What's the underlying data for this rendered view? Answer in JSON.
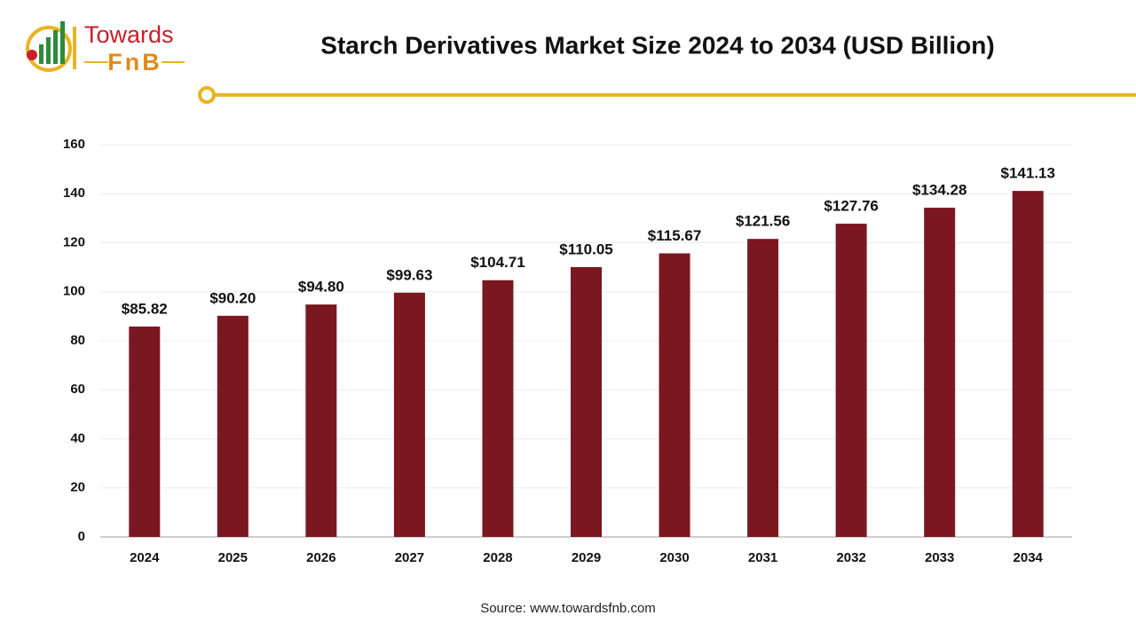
{
  "logo": {
    "line1": "Towards",
    "line2": "FnB"
  },
  "chart_data": {
    "type": "bar",
    "title": "Starch Derivatives Market Size 2024 to 2034 (USD Billion)",
    "categories": [
      "2024",
      "2025",
      "2026",
      "2027",
      "2028",
      "2029",
      "2030",
      "2031",
      "2032",
      "2033",
      "2034"
    ],
    "values": [
      85.82,
      90.2,
      94.8,
      99.63,
      104.71,
      110.05,
      115.67,
      121.56,
      127.76,
      134.28,
      141.13
    ],
    "value_labels": [
      "$85.82",
      "$90.20",
      "$94.80",
      "$99.63",
      "$104.71",
      "$110.05",
      "$115.67",
      "$121.56",
      "$127.76",
      "$134.28",
      "$141.13"
    ],
    "color": "#7b1720",
    "ylim": [
      0,
      160
    ],
    "yticks": [
      0,
      20,
      40,
      60,
      80,
      100,
      120,
      140,
      160
    ],
    "grid": true,
    "source": "Source: www.towardsfnb.com"
  }
}
